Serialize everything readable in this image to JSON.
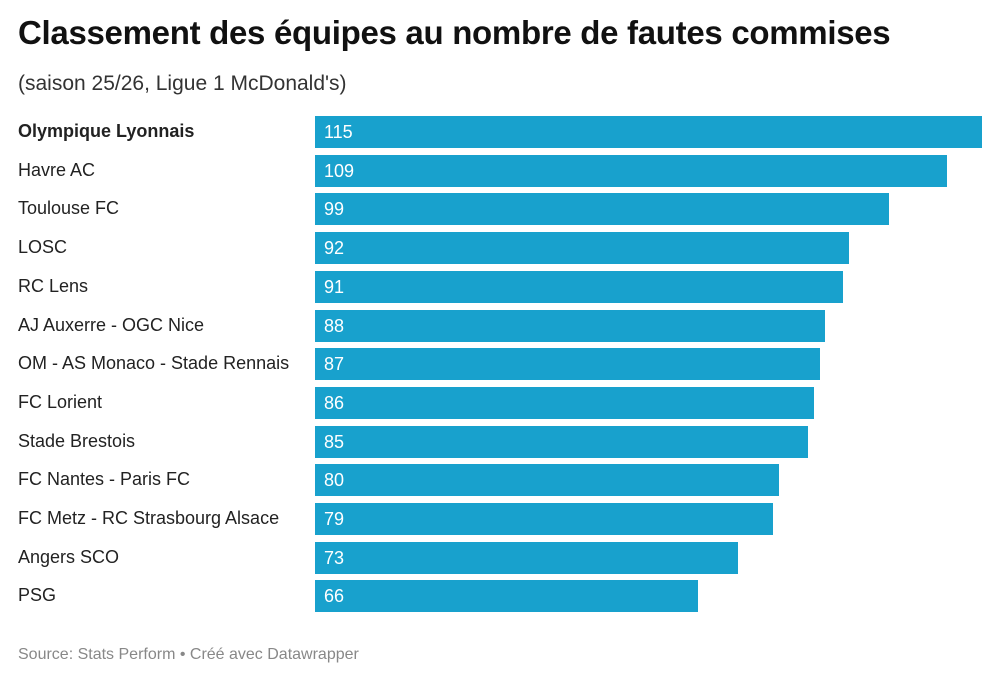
{
  "header": {
    "title": "Classement des équipes au nombre de fautes commises",
    "subtitle": "(saison 25/26, Ligue 1 McDonald's)"
  },
  "footer": {
    "text": "Source: Stats Perform • Créé avec Datawrapper"
  },
  "chart_data": {
    "type": "bar",
    "orientation": "horizontal",
    "title": "Classement des équipes au nombre de fautes commises",
    "subtitle": "(saison 25/26, Ligue 1 McDonald's)",
    "categories": [
      "Olympique Lyonnais",
      "Havre AC",
      "Toulouse FC",
      "LOSC",
      "RC Lens",
      "AJ Auxerre - OGC Nice",
      "OM - AS Monaco - Stade Rennais",
      "FC Lorient",
      "Stade Brestois",
      "FC Nantes - Paris FC",
      "FC Metz - RC Strasbourg Alsace",
      "Angers SCO",
      "PSG"
    ],
    "values": [
      115,
      109,
      99,
      92,
      91,
      88,
      87,
      86,
      85,
      80,
      79,
      73,
      66
    ],
    "highlighted": [
      "Olympique Lyonnais"
    ],
    "xlim": [
      0,
      115
    ],
    "grid": false,
    "bar_color": "#18a1cd",
    "value_labels": "inside-left"
  }
}
